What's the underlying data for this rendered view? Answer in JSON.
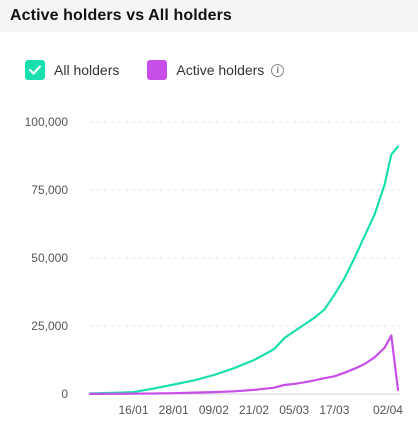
{
  "header": {
    "title": "Active holders vs All holders"
  },
  "legend": {
    "items": [
      {
        "label": "All holders",
        "color": "#19dfae",
        "icon": "checkmark-icon"
      },
      {
        "label": "Active holders",
        "color": "#c84ee9",
        "icon": "info-icon",
        "info_glyph": "i"
      }
    ]
  },
  "chart_data": {
    "type": "line",
    "grid": true,
    "y_ticks": [
      "100,000",
      "75,000",
      "50,000",
      "25,000",
      "0"
    ],
    "y_tick_values": [
      100000,
      75000,
      50000,
      25000,
      0
    ],
    "ylim": [
      0,
      100000
    ],
    "x_ticks": [
      "16/01",
      "28/01",
      "09/02",
      "21/02",
      "05/03",
      "17/03",
      "02/04"
    ],
    "series": [
      {
        "name": "All holders",
        "color": "#19dfae",
        "x": [
          "03/01",
          "10/01",
          "16/01",
          "22/01",
          "28/01",
          "03/02",
          "09/02",
          "15/02",
          "21/02",
          "24/02",
          "27/02",
          "02/03",
          "05/03",
          "08/03",
          "11/03",
          "14/03",
          "17/03",
          "20/03",
          "23/03",
          "26/03",
          "29/03",
          "01/04",
          "03/04",
          "05/04"
        ],
        "values": [
          200,
          400,
          700,
          2000,
          3500,
          5000,
          7000,
          9500,
          12500,
          14500,
          16500,
          20500,
          23000,
          25500,
          28000,
          31000,
          36500,
          42500,
          50000,
          58000,
          66000,
          77000,
          88000,
          91000
        ]
      },
      {
        "name": "Active holders",
        "color": "#c84ee9",
        "x": [
          "03/01",
          "10/01",
          "16/01",
          "22/01",
          "28/01",
          "03/02",
          "09/02",
          "15/02",
          "21/02",
          "24/02",
          "27/02",
          "02/03",
          "05/03",
          "08/03",
          "11/03",
          "14/03",
          "17/03",
          "20/03",
          "23/03",
          "26/03",
          "29/03",
          "01/04",
          "03/04",
          "05/04"
        ],
        "values": [
          50,
          80,
          120,
          200,
          300,
          500,
          700,
          1000,
          1500,
          1900,
          2300,
          3300,
          3700,
          4300,
          5000,
          5800,
          6500,
          7800,
          9300,
          11000,
          13500,
          17000,
          21500,
          1500
        ]
      }
    ]
  }
}
